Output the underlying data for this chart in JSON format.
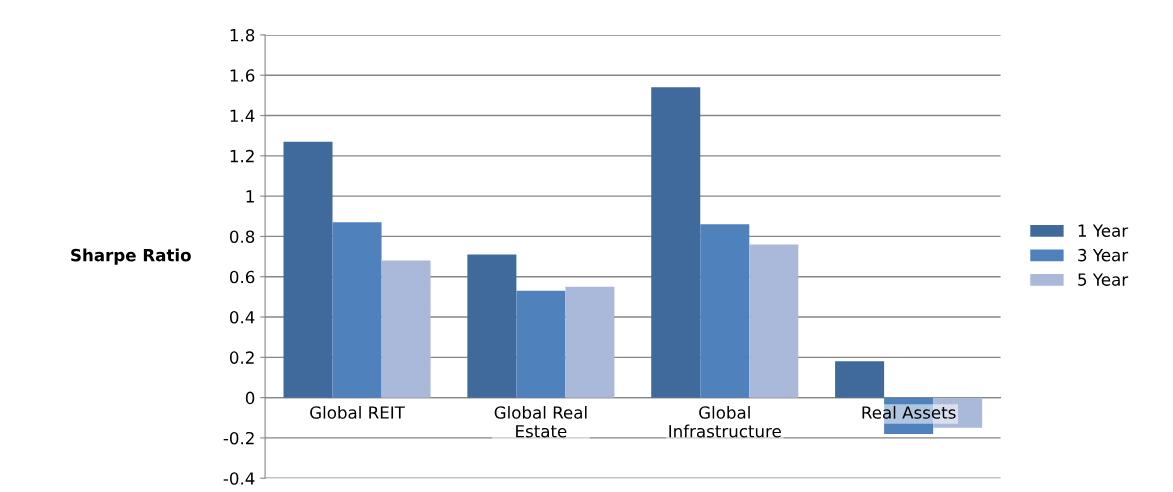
{
  "chart_data": {
    "type": "bar",
    "ylabel": "Sharpe Ratio",
    "categories": [
      "Global REIT",
      "Global Real\nEstate",
      "Global\nInfrastructure",
      "Real Assets"
    ],
    "series": [
      {
        "name": "1 Year",
        "color": "#406a9c",
        "values": [
          1.27,
          0.71,
          1.54,
          0.18
        ]
      },
      {
        "name": "3 Year",
        "color": "#4f81bd",
        "values": [
          0.87,
          0.53,
          0.86,
          -0.18
        ]
      },
      {
        "name": "5 Year",
        "color": "#aab9d9",
        "values": [
          0.68,
          0.55,
          0.76,
          -0.15
        ]
      }
    ],
    "ylim": [
      -0.4,
      1.8
    ],
    "yticks": [
      -0.4,
      -0.2,
      0,
      0.2,
      0.4,
      0.6,
      0.8,
      1,
      1.2,
      1.4,
      1.6,
      1.8
    ],
    "grid": "y",
    "legend": "right"
  }
}
